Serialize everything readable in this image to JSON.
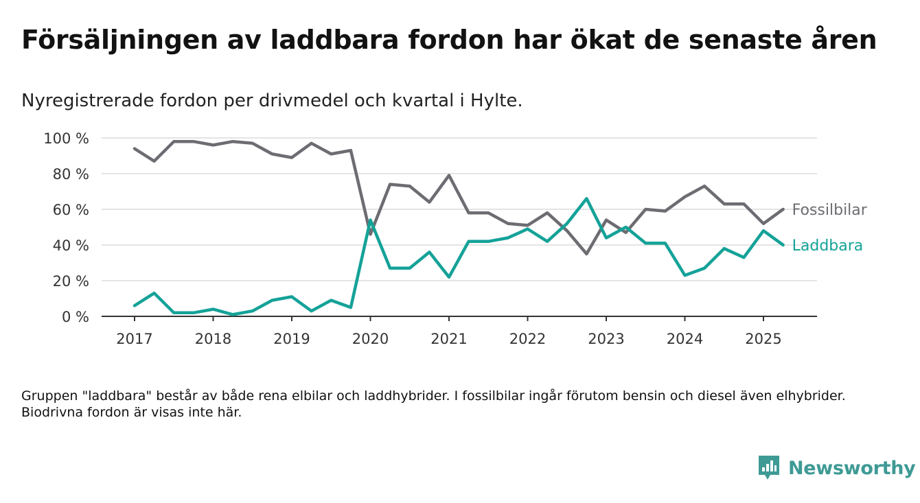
{
  "title": "Försäljningen av laddbara fordon har ökat de senaste åren",
  "subtitle": "Nyregistrerade fordon per drivmedel och kvartal i Hylte.",
  "note": "Gruppen \"laddbara\" består av både rena elbilar och laddhybrider. I fossilbilar ingår förutom bensin och diesel även elhybrider. Biodrivna fordon är visas inte här.",
  "brand": {
    "name": "Newsworthy",
    "icon": "newsworthy-logo-icon",
    "color": "#3e9a95"
  },
  "chart_data": {
    "type": "line",
    "title": "Försäljningen av laddbara fordon har ökat de senaste åren",
    "subtitle": "Nyregistrerade fordon per drivmedel och kvartal i Hylte.",
    "x_ticks": [
      "2017",
      "2018",
      "2019",
      "2020",
      "2021",
      "2022",
      "2023",
      "2024",
      "2025"
    ],
    "y_ticks": [
      "0 %",
      "20 %",
      "40 %",
      "60 %",
      "80 %",
      "100 %"
    ],
    "ylim": [
      0,
      100
    ],
    "grid": "horizontal",
    "x_start": "2017-Q1",
    "x": [
      "2017-Q1",
      "2017-Q2",
      "2017-Q3",
      "2017-Q4",
      "2018-Q1",
      "2018-Q2",
      "2018-Q3",
      "2018-Q4",
      "2019-Q1",
      "2019-Q2",
      "2019-Q3",
      "2019-Q4",
      "2020-Q1",
      "2020-Q2",
      "2020-Q3",
      "2020-Q4",
      "2021-Q1",
      "2021-Q2",
      "2021-Q3",
      "2021-Q4",
      "2022-Q1",
      "2022-Q2",
      "2022-Q3",
      "2022-Q4",
      "2023-Q1",
      "2023-Q2",
      "2023-Q3",
      "2023-Q4",
      "2024-Q1",
      "2024-Q2",
      "2024-Q3",
      "2024-Q4",
      "2025-Q1",
      "2025-Q2"
    ],
    "series": [
      {
        "name": "Fossilbilar",
        "color": "#6d6c72",
        "values": [
          94,
          87,
          98,
          98,
          96,
          98,
          97,
          91,
          89,
          97,
          91,
          93,
          46,
          74,
          73,
          64,
          79,
          58,
          58,
          52,
          51,
          58,
          48,
          35,
          54,
          47,
          60,
          59,
          67,
          73,
          63,
          63,
          52,
          60
        ]
      },
      {
        "name": "Laddbara",
        "color": "#14a298",
        "values": [
          6,
          13,
          2,
          2,
          4,
          1,
          3,
          9,
          11,
          3,
          9,
          5,
          54,
          27,
          27,
          36,
          22,
          42,
          42,
          44,
          49,
          42,
          52,
          66,
          44,
          50,
          41,
          41,
          23,
          27,
          38,
          33,
          48,
          40
        ]
      }
    ]
  }
}
